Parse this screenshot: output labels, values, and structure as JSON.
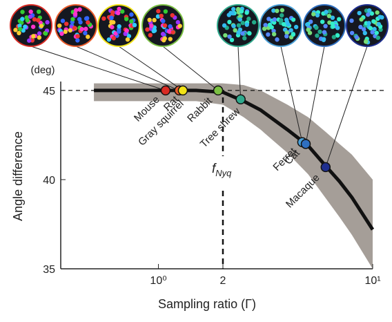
{
  "chart_data": {
    "type": "line",
    "x_label": "Sampling ratio (Γ)",
    "y_label": "Angle difference",
    "y_unit": "(deg)",
    "annotation": {
      "text": "f",
      "subscript": "Nyq"
    },
    "xlim": [
      0.35,
      10
    ],
    "ylim": [
      35,
      45.5
    ],
    "log_x": true,
    "xticks": [
      {
        "value": 1,
        "label": "10⁰"
      },
      2,
      {
        "value": 10,
        "label": "10¹"
      }
    ],
    "yticks": [
      35,
      40,
      45
    ],
    "reference": {
      "y": 45,
      "x": 2
    },
    "curve": {
      "color": "#111111",
      "x": [
        0.5,
        1,
        1.5,
        2,
        2.5,
        3,
        4,
        5,
        6,
        7,
        8,
        10
      ],
      "values": [
        45,
        45,
        45,
        44.9,
        44.4,
        43.9,
        42.8,
        41.9,
        40.8,
        39.9,
        39.0,
        37.2
      ]
    },
    "band": {
      "color": "#a59e98",
      "upper": [
        45.4,
        45.4,
        45.4,
        45.4,
        45.3,
        45.0,
        44.2,
        43.5,
        42.7,
        42.0,
        41.4,
        40.0
      ],
      "lower": [
        44.4,
        44.4,
        44.4,
        44.2,
        43.5,
        42.8,
        41.5,
        40.3,
        39.0,
        37.9,
        36.9,
        35.0
      ]
    },
    "points": {
      "names": [
        "Mouse",
        "Rat",
        "Gray squirrel",
        "Rabbit",
        "Tree shrew",
        "Ferret",
        "Cat",
        "Macaque"
      ],
      "x": [
        1.08,
        1.25,
        1.3,
        1.9,
        2.42,
        4.69,
        4.87,
        6.03
      ],
      "values": [
        45,
        45,
        45,
        45,
        44.5,
        42.1,
        42.0,
        40.7
      ],
      "colors": [
        "#d92b24",
        "#e85a2a",
        "#f2e317",
        "#7bc043",
        "#2fa98c",
        "#4aa0d8",
        "#2f6fc0",
        "#1f2f8f"
      ]
    }
  }
}
